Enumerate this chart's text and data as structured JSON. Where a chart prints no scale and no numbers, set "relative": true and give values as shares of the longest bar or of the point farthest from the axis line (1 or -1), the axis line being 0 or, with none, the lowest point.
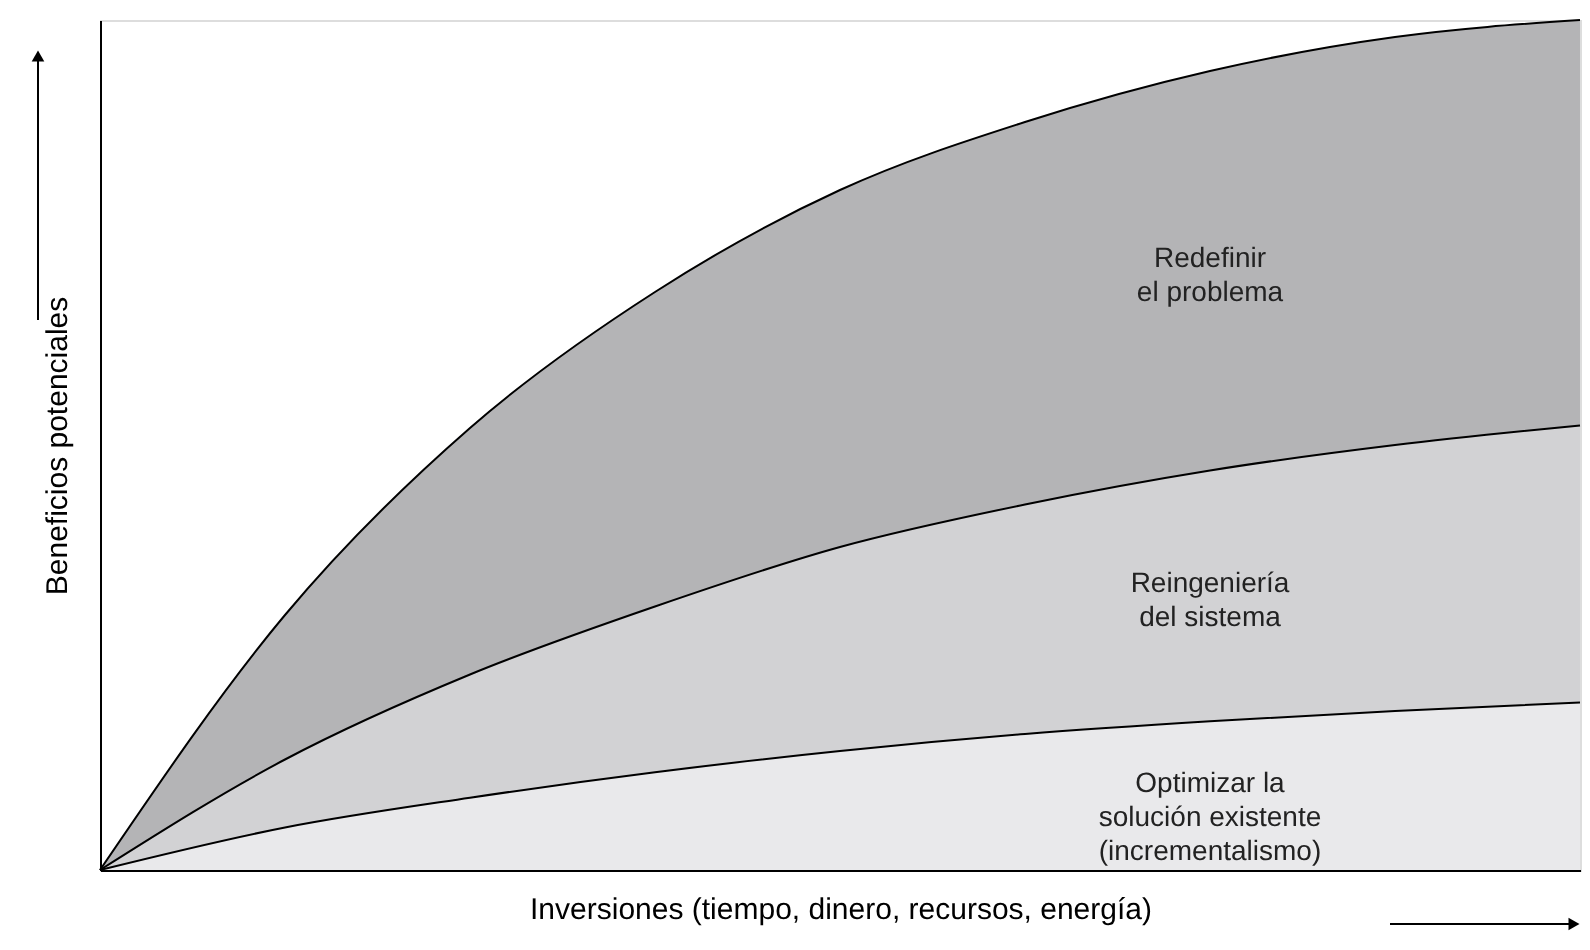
{
  "chart_data": {
    "type": "area",
    "relative": true,
    "xlabel": "Inversiones (tiempo, dinero, recursos, energía)",
    "ylabel": "Beneficios potenciales",
    "categories": [
      null,
      null,
      null,
      null,
      null,
      null,
      null,
      null,
      null
    ],
    "grid": false,
    "series": [
      {
        "name": "Redefinir\nel problema",
        "color": "#b4b4b6",
        "values": [
          0,
          0.3,
          0.52,
          0.68,
          0.8,
          0.88,
          0.94,
          0.98,
          1.0
        ]
      },
      {
        "name": "Reingeniería\ndel sistema",
        "color": "#d2d2d4",
        "values": [
          0,
          0.13,
          0.23,
          0.31,
          0.38,
          0.43,
          0.47,
          0.5,
          0.523
        ]
      },
      {
        "name": "Optimizar la\nsolución existente\n(incrementalismo)",
        "color": "#e9e9eb",
        "values": [
          0,
          0.05,
          0.085,
          0.115,
          0.14,
          0.16,
          0.175,
          0.187,
          0.197
        ]
      }
    ]
  }
}
